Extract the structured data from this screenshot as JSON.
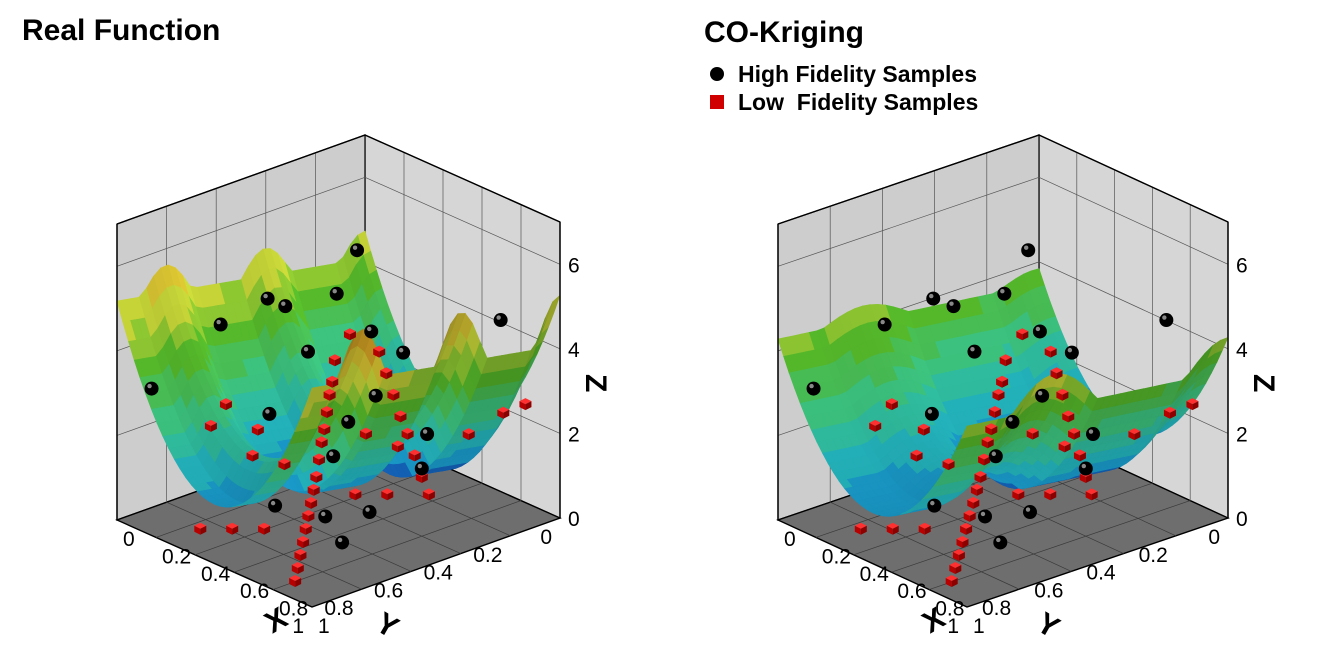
{
  "charts": {
    "left": {
      "title": "Real Function"
    },
    "right": {
      "title": "CO-Kriging",
      "legend": [
        {
          "label": "High Fidelity Samples",
          "marker": "black-sphere",
          "color": "#000000"
        },
        {
          "label": "Low  Fidelity Samples",
          "marker": "red-cube",
          "color": "#d00000"
        }
      ]
    }
  },
  "chart_data": [
    {
      "type": "surface3d",
      "title": "Real Function",
      "xlabel": "X",
      "ylabel": "Y",
      "zlabel": "Z",
      "xlim": [
        0,
        1
      ],
      "ylim": [
        0,
        1
      ],
      "zlim": [
        0,
        7
      ],
      "xticks": [
        "0",
        "0.2",
        "0.4",
        "0.6",
        "0.8",
        "1"
      ],
      "yticks": [
        "0",
        "0.2",
        "0.4",
        "0.6",
        "0.8",
        "1"
      ],
      "zticks": [
        "0",
        "2",
        "4",
        "6"
      ],
      "colormap": [
        "#1030c0",
        "#20c8f0",
        "#40e0a0",
        "#60d030",
        "#f0f040",
        "#f0a020",
        "#f04040"
      ],
      "series": [
        {
          "name": "High Fidelity Samples",
          "points": [
            [
              0.3,
              0.35,
              4.6
            ],
            [
              0.2,
              0.55,
              4.7
            ],
            [
              0.15,
              0.7,
              4.3
            ],
            [
              0.35,
              0.25,
              3.6
            ],
            [
              0.28,
              0.45,
              3.4
            ],
            [
              0.45,
              0.2,
              3.2
            ],
            [
              0.5,
              0.35,
              2.6
            ],
            [
              0.55,
              0.5,
              2.4
            ],
            [
              0.6,
              0.6,
              1.9
            ],
            [
              0.7,
              0.3,
              2.0
            ],
            [
              0.8,
              0.4,
              1.6
            ],
            [
              0.85,
              0.65,
              1.2
            ],
            [
              0.75,
              0.75,
              1.1
            ],
            [
              0.9,
              0.8,
              0.9
            ],
            [
              0.4,
              0.7,
              2.7
            ],
            [
              0.15,
              0.15,
              4.9
            ],
            [
              0.1,
              0.4,
              4.0
            ],
            [
              0.62,
              0.85,
              1.3
            ],
            [
              0.95,
              0.2,
              5.0
            ],
            [
              0.05,
              0.9,
              3.0
            ]
          ]
        },
        {
          "name": "Low  Fidelity Samples",
          "points": [
            [
              0.05,
              0.1,
              2.6
            ],
            [
              0.1,
              0.2,
              2.3
            ],
            [
              0.15,
              0.25,
              2.0
            ],
            [
              0.2,
              0.3,
              1.9
            ],
            [
              0.25,
              0.35,
              1.7
            ],
            [
              0.3,
              0.4,
              1.5
            ],
            [
              0.35,
              0.45,
              1.4
            ],
            [
              0.4,
              0.5,
              1.2
            ],
            [
              0.45,
              0.55,
              1.0
            ],
            [
              0.5,
              0.6,
              0.9
            ],
            [
              0.55,
              0.65,
              0.8
            ],
            [
              0.6,
              0.7,
              0.7
            ],
            [
              0.65,
              0.75,
              0.6
            ],
            [
              0.7,
              0.8,
              0.5
            ],
            [
              0.75,
              0.85,
              0.4
            ],
            [
              0.8,
              0.9,
              0.3
            ],
            [
              0.85,
              0.95,
              0.2
            ],
            [
              0.2,
              0.1,
              2.5
            ],
            [
              0.3,
              0.15,
              2.3
            ],
            [
              0.4,
              0.2,
              2.1
            ],
            [
              0.5,
              0.25,
              1.9
            ],
            [
              0.6,
              0.3,
              1.8
            ],
            [
              0.7,
              0.35,
              1.6
            ],
            [
              0.8,
              0.4,
              1.4
            ],
            [
              0.9,
              0.45,
              1.3
            ],
            [
              0.95,
              0.1,
              2.8
            ],
            [
              0.9,
              0.15,
              2.6
            ],
            [
              0.85,
              0.25,
              2.2
            ],
            [
              0.75,
              0.5,
              1.1
            ],
            [
              0.65,
              0.55,
              1.0
            ],
            [
              0.55,
              0.3,
              1.4
            ],
            [
              0.45,
              0.35,
              1.6
            ],
            [
              0.35,
              0.6,
              1.2
            ],
            [
              0.25,
              0.65,
              1.3
            ],
            [
              0.15,
              0.55,
              1.5
            ],
            [
              0.1,
              0.7,
              1.8
            ],
            [
              0.05,
              0.6,
              2.0
            ],
            [
              0.5,
              0.8,
              0.4
            ],
            [
              0.4,
              0.85,
              0.3
            ],
            [
              0.3,
              0.9,
              0.2
            ]
          ]
        }
      ]
    },
    {
      "type": "surface3d",
      "title": "CO-Kriging",
      "xlabel": "X",
      "ylabel": "Y",
      "zlabel": "Z",
      "xlim": [
        0,
        1
      ],
      "ylim": [
        0,
        1
      ],
      "zlim": [
        0,
        7
      ],
      "xticks": [
        "0",
        "0.2",
        "0.4",
        "0.6",
        "0.8",
        "1"
      ],
      "yticks": [
        "0",
        "0.2",
        "0.4",
        "0.6",
        "0.8",
        "1"
      ],
      "zticks": [
        "0",
        "2",
        "4",
        "6"
      ],
      "colormap": [
        "#1030c0",
        "#20c8f0",
        "#40e0a0",
        "#60d030",
        "#f0f040",
        "#f0a020",
        "#f04040"
      ],
      "series": [
        {
          "name": "High Fidelity Samples",
          "points": [
            [
              0.3,
              0.35,
              4.6
            ],
            [
              0.2,
              0.55,
              4.7
            ],
            [
              0.15,
              0.7,
              4.3
            ],
            [
              0.35,
              0.25,
              3.6
            ],
            [
              0.28,
              0.45,
              3.4
            ],
            [
              0.45,
              0.2,
              3.2
            ],
            [
              0.5,
              0.35,
              2.6
            ],
            [
              0.55,
              0.5,
              2.4
            ],
            [
              0.6,
              0.6,
              1.9
            ],
            [
              0.7,
              0.3,
              2.0
            ],
            [
              0.8,
              0.4,
              1.6
            ],
            [
              0.85,
              0.65,
              1.2
            ],
            [
              0.75,
              0.75,
              1.1
            ],
            [
              0.9,
              0.8,
              0.9
            ],
            [
              0.4,
              0.7,
              2.7
            ],
            [
              0.15,
              0.15,
              4.9
            ],
            [
              0.1,
              0.4,
              4.0
            ],
            [
              0.62,
              0.85,
              1.3
            ],
            [
              0.95,
              0.2,
              5.0
            ],
            [
              0.05,
              0.9,
              3.0
            ]
          ]
        },
        {
          "name": "Low  Fidelity Samples",
          "points": [
            [
              0.05,
              0.1,
              2.6
            ],
            [
              0.1,
              0.2,
              2.3
            ],
            [
              0.15,
              0.25,
              2.0
            ],
            [
              0.2,
              0.3,
              1.9
            ],
            [
              0.25,
              0.35,
              1.7
            ],
            [
              0.3,
              0.4,
              1.5
            ],
            [
              0.35,
              0.45,
              1.4
            ],
            [
              0.4,
              0.5,
              1.2
            ],
            [
              0.45,
              0.55,
              1.0
            ],
            [
              0.5,
              0.6,
              0.9
            ],
            [
              0.55,
              0.65,
              0.8
            ],
            [
              0.6,
              0.7,
              0.7
            ],
            [
              0.65,
              0.75,
              0.6
            ],
            [
              0.7,
              0.8,
              0.5
            ],
            [
              0.75,
              0.85,
              0.4
            ],
            [
              0.8,
              0.9,
              0.3
            ],
            [
              0.85,
              0.95,
              0.2
            ],
            [
              0.2,
              0.1,
              2.5
            ],
            [
              0.3,
              0.15,
              2.3
            ],
            [
              0.4,
              0.2,
              2.1
            ],
            [
              0.5,
              0.25,
              1.9
            ],
            [
              0.6,
              0.3,
              1.8
            ],
            [
              0.7,
              0.35,
              1.6
            ],
            [
              0.8,
              0.4,
              1.4
            ],
            [
              0.9,
              0.45,
              1.3
            ],
            [
              0.95,
              0.1,
              2.8
            ],
            [
              0.9,
              0.15,
              2.6
            ],
            [
              0.85,
              0.25,
              2.2
            ],
            [
              0.75,
              0.5,
              1.1
            ],
            [
              0.65,
              0.55,
              1.0
            ],
            [
              0.55,
              0.3,
              1.4
            ],
            [
              0.45,
              0.35,
              1.6
            ],
            [
              0.35,
              0.6,
              1.2
            ],
            [
              0.25,
              0.65,
              1.3
            ],
            [
              0.15,
              0.55,
              1.5
            ],
            [
              0.1,
              0.7,
              1.8
            ],
            [
              0.05,
              0.6,
              2.0
            ],
            [
              0.5,
              0.8,
              0.4
            ],
            [
              0.4,
              0.85,
              0.3
            ],
            [
              0.3,
              0.9,
              0.2
            ]
          ]
        }
      ]
    }
  ]
}
